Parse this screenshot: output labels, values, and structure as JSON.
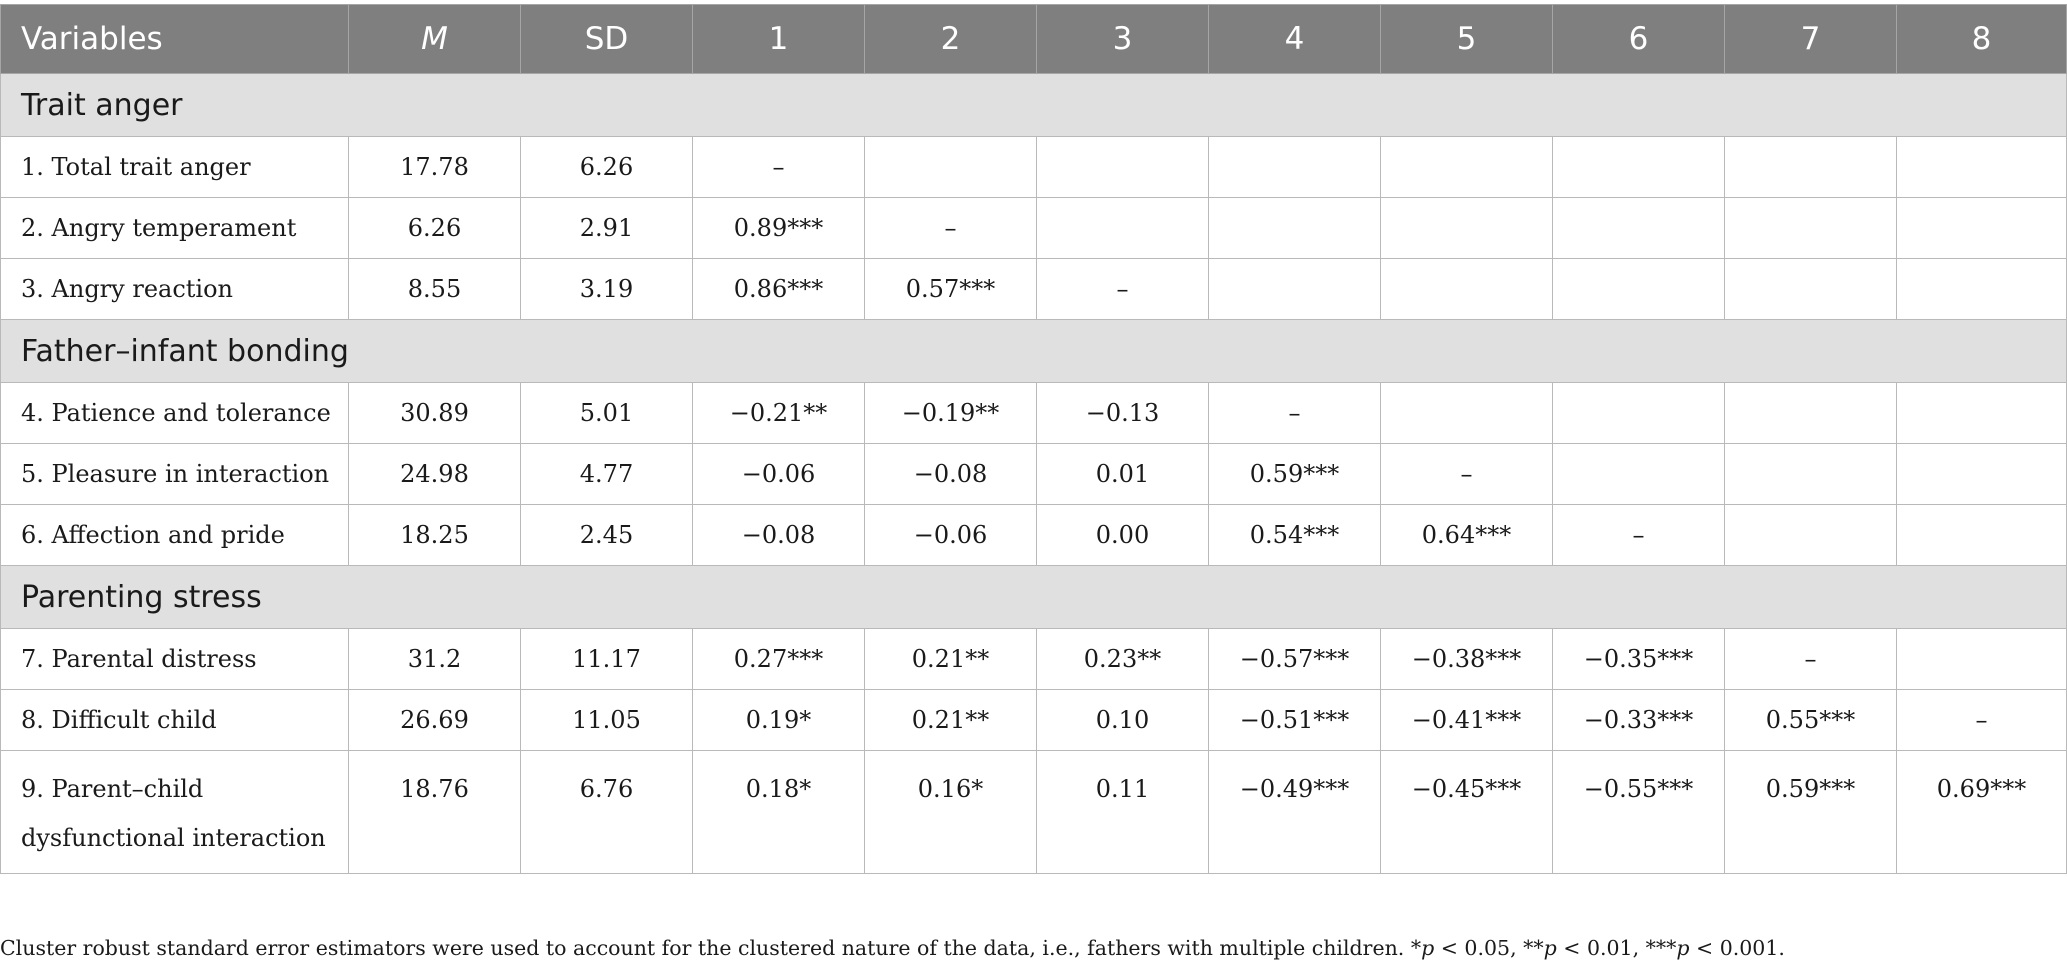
{
  "header": [
    "Variables",
    "M",
    "SD",
    "1",
    "2",
    "3",
    "4",
    "5",
    "6",
    "7",
    "8"
  ],
  "sections": [
    {
      "title": "Trait anger",
      "rows": [
        [
          "1. Total trait anger",
          "17.78",
          "6.26",
          "–",
          "",
          "",
          "",
          "",
          "",
          "",
          ""
        ],
        [
          "2. Angry temperament",
          "6.26",
          "2.91",
          "0.89***",
          "–",
          "",
          "",
          "",
          "",
          "",
          ""
        ],
        [
          "3. Angry reaction",
          "8.55",
          "3.19",
          "0.86***",
          "0.57***",
          "–",
          "",
          "",
          "",
          "",
          ""
        ]
      ]
    },
    {
      "title": "Father–infant bonding",
      "rows": [
        [
          "4. Patience and tolerance",
          "30.89",
          "5.01",
          "−0.21**",
          "−0.19**",
          "−0.13",
          "–",
          "",
          "",
          "",
          ""
        ],
        [
          "5. Pleasure in interaction",
          "24.98",
          "4.77",
          "−0.06",
          "−0.08",
          "0.01",
          "0.59***",
          "–",
          "",
          "",
          ""
        ],
        [
          "6. Affection and pride",
          "18.25",
          "2.45",
          "−0.08",
          "−0.06",
          "0.00",
          "0.54***",
          "0.64***",
          "–",
          "",
          ""
        ]
      ]
    },
    {
      "title": "Parenting stress",
      "rows": [
        [
          "7. Parental distress",
          "31.2",
          "11.17",
          "0.27***",
          "0.21**",
          "0.23**",
          "−0.57***",
          "−0.38***",
          "−0.35***",
          "–",
          ""
        ],
        [
          "8. Difficult child",
          "26.69",
          "11.05",
          "0.19*",
          "0.21**",
          "0.10",
          "−0.51***",
          "−0.41***",
          "−0.33***",
          "0.55***",
          "–"
        ],
        [
          "9. Parent–child dysfunctional interaction",
          "18.76",
          "6.76",
          "0.18*",
          "0.16*",
          "0.11",
          "−0.49***",
          "−0.45***",
          "−0.55***",
          "0.59***",
          "0.69***"
        ]
      ]
    }
  ],
  "footnote": "Cluster robust standard error estimators were used to account for the clustered nature of the data, i.e., fathers with multiple children. *p < 0.05, **p < 0.01, ***p < 0.001."
}
